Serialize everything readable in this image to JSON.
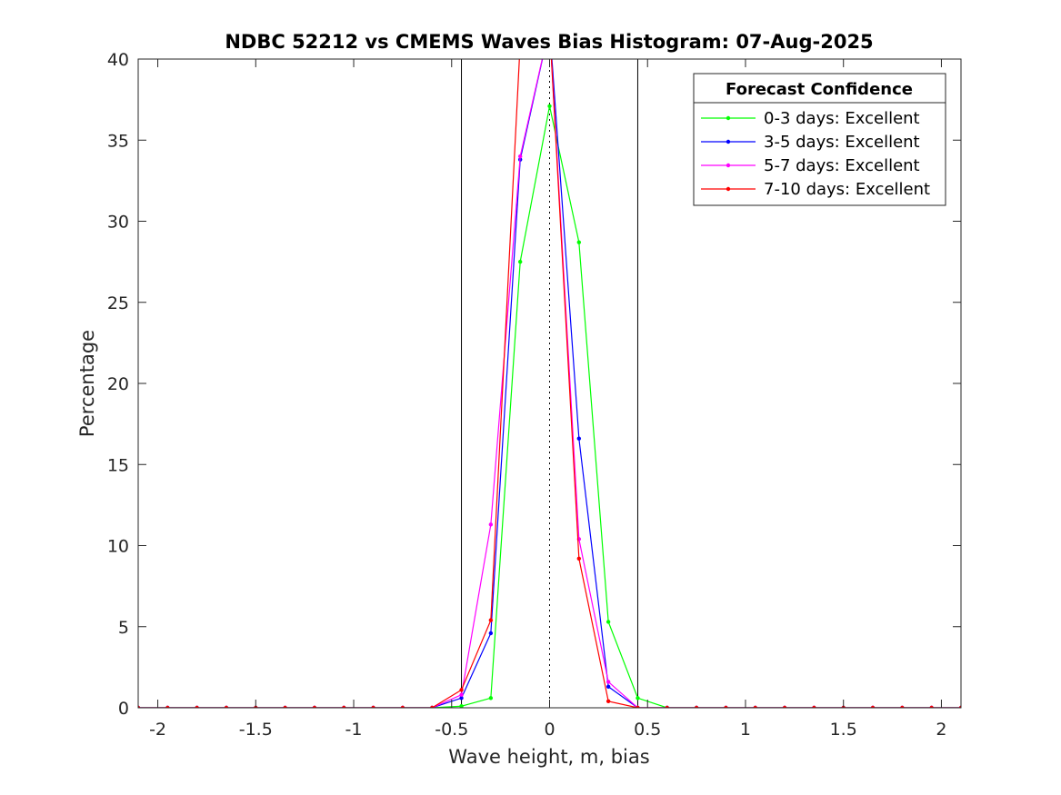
{
  "chart_data": {
    "type": "line",
    "title": "NDBC 52212 vs CMEMS Waves Bias Histogram: 07-Aug-2025",
    "xlabel": "Wave height, m, bias",
    "ylabel": "Percentage",
    "xlim": [
      -2.1,
      2.1
    ],
    "ylim": [
      0,
      40
    ],
    "xticks": [
      -2,
      -1.5,
      -1,
      -0.5,
      0,
      0.5,
      1,
      1.5,
      2
    ],
    "xtick_labels": [
      "-2",
      "-1.5",
      "-1",
      "-0.5",
      "0",
      "0.5",
      "1",
      "1.5",
      "2"
    ],
    "yticks": [
      0,
      5,
      10,
      15,
      20,
      25,
      30,
      35,
      40
    ],
    "ytick_labels": [
      "0",
      "5",
      "10",
      "15",
      "20",
      "25",
      "30",
      "35",
      "40"
    ],
    "grid": false,
    "vertical_lines": [
      -0.45,
      0.45
    ],
    "zero_line": 0,
    "legend": {
      "title": "Forecast Confidence",
      "placement": "top-right"
    },
    "x": [
      -2.1,
      -1.95,
      -1.8,
      -1.65,
      -1.5,
      -1.35,
      -1.2,
      -1.05,
      -0.9,
      -0.75,
      -0.6,
      -0.45,
      -0.3,
      -0.15,
      0,
      0.15,
      0.3,
      0.45,
      0.6,
      0.75,
      0.9,
      1.05,
      1.2,
      1.35,
      1.5,
      1.65,
      1.8,
      1.95,
      2.1
    ],
    "series": [
      {
        "name": "0-3 days: Excellent",
        "color": "#00ff00",
        "values": [
          0,
          0,
          0,
          0,
          0,
          0,
          0,
          0,
          0,
          0,
          0,
          0.1,
          0.6,
          27.5,
          37.1,
          28.7,
          5.3,
          0.6,
          0,
          0,
          0,
          0,
          0,
          0,
          0,
          0,
          0,
          0,
          0
        ]
      },
      {
        "name": "3-5 days: Excellent",
        "color": "#0000ff",
        "values": [
          0,
          0,
          0,
          0,
          0,
          0,
          0,
          0,
          0,
          0,
          0,
          0.6,
          4.6,
          33.8,
          42.0,
          16.6,
          1.3,
          0,
          0,
          0,
          0,
          0,
          0,
          0,
          0,
          0,
          0,
          0,
          0
        ]
      },
      {
        "name": "5-7 days: Excellent",
        "color": "#ff00ff",
        "values": [
          0,
          0,
          0,
          0,
          0,
          0,
          0,
          0,
          0,
          0,
          0,
          0.8,
          11.3,
          34.0,
          42.0,
          10.4,
          1.6,
          0,
          0,
          0,
          0,
          0,
          0,
          0,
          0,
          0,
          0,
          0,
          0
        ]
      },
      {
        "name": "7-10 days: Excellent",
        "color": "#ff0000",
        "values": [
          0,
          0,
          0,
          0,
          0,
          0,
          0,
          0,
          0,
          0,
          0,
          1.1,
          5.4,
          41.0,
          42.0,
          9.2,
          0.4,
          0,
          0,
          0,
          0,
          0,
          0,
          0,
          0,
          0,
          0,
          0,
          0
        ]
      }
    ]
  }
}
